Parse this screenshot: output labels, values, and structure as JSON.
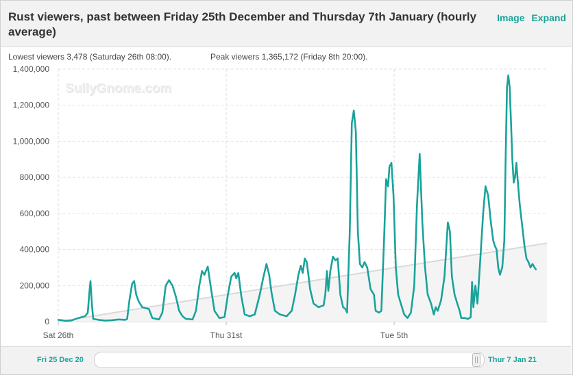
{
  "header": {
    "title": "Rust viewers, past between Friday 25th December and Thursday 7th January (hourly average)",
    "image_link": "Image",
    "expand_link": "Expand"
  },
  "info": {
    "lowest": "Lowest viewers 3,478 (Saturday 26th 08:00).",
    "peak": "Peak viewers 1,365,172 (Friday 8th 20:00)."
  },
  "watermark": "SullyGnome.com",
  "navigator": {
    "start_label": "Fri 25 Dec 20",
    "end_label": "Thur 7 Jan 21"
  },
  "colors": {
    "line": "#19a39a",
    "trend": "#d9d9d9",
    "accent": "#1aa39a"
  },
  "chart_data": {
    "type": "line",
    "title": "Rust viewers, past between Friday 25th December and Thursday 7th January (hourly average)",
    "x_unit": "days since Fri 25 Dec 00:00",
    "x_ticks": [
      {
        "x": 1,
        "label": "Sat 26th"
      },
      {
        "x": 6,
        "label": "Thu 31st"
      },
      {
        "x": 11,
        "label": "Tue 5th"
      }
    ],
    "y_ticks": [
      0,
      200000,
      400000,
      600000,
      800000,
      1000000,
      1200000,
      1400000
    ],
    "y_tick_labels": [
      "0",
      "200,000",
      "400,000",
      "600,000",
      "800,000",
      "1,000,000",
      "1,200,000",
      "1,400,000"
    ],
    "ylim": [
      0,
      1400000
    ],
    "xlim": [
      1,
      15.55
    ],
    "grid": true,
    "series": [
      {
        "name": "Viewers",
        "points": [
          [
            1.0,
            10000
          ],
          [
            1.1,
            8000
          ],
          [
            1.2,
            5000
          ],
          [
            1.3,
            5000
          ],
          [
            1.4,
            7000
          ],
          [
            1.6,
            20000
          ],
          [
            1.8,
            30000
          ],
          [
            1.88,
            50000
          ],
          [
            1.92,
            150000
          ],
          [
            1.96,
            225000
          ],
          [
            2.0,
            100000
          ],
          [
            2.04,
            15000
          ],
          [
            2.2,
            10000
          ],
          [
            2.4,
            6000
          ],
          [
            2.6,
            8000
          ],
          [
            2.8,
            12000
          ],
          [
            3.0,
            10000
          ],
          [
            3.05,
            15000
          ],
          [
            3.12,
            120000
          ],
          [
            3.2,
            210000
          ],
          [
            3.26,
            225000
          ],
          [
            3.32,
            150000
          ],
          [
            3.4,
            110000
          ],
          [
            3.5,
            80000
          ],
          [
            3.7,
            70000
          ],
          [
            3.8,
            20000
          ],
          [
            4.0,
            12000
          ],
          [
            4.1,
            50000
          ],
          [
            4.2,
            200000
          ],
          [
            4.3,
            230000
          ],
          [
            4.4,
            200000
          ],
          [
            4.5,
            140000
          ],
          [
            4.6,
            60000
          ],
          [
            4.7,
            30000
          ],
          [
            4.8,
            15000
          ],
          [
            5.0,
            12000
          ],
          [
            5.1,
            60000
          ],
          [
            5.2,
            200000
          ],
          [
            5.28,
            280000
          ],
          [
            5.35,
            260000
          ],
          [
            5.45,
            305000
          ],
          [
            5.55,
            180000
          ],
          [
            5.65,
            60000
          ],
          [
            5.8,
            20000
          ],
          [
            5.95,
            25000
          ],
          [
            6.05,
            150000
          ],
          [
            6.15,
            250000
          ],
          [
            6.25,
            270000
          ],
          [
            6.3,
            240000
          ],
          [
            6.36,
            270000
          ],
          [
            6.45,
            140000
          ],
          [
            6.55,
            40000
          ],
          [
            6.7,
            30000
          ],
          [
            6.85,
            40000
          ],
          [
            7.0,
            150000
          ],
          [
            7.1,
            240000
          ],
          [
            7.2,
            320000
          ],
          [
            7.28,
            260000
          ],
          [
            7.35,
            160000
          ],
          [
            7.45,
            60000
          ],
          [
            7.6,
            40000
          ],
          [
            7.8,
            30000
          ],
          [
            7.95,
            60000
          ],
          [
            8.05,
            150000
          ],
          [
            8.15,
            260000
          ],
          [
            8.22,
            310000
          ],
          [
            8.28,
            270000
          ],
          [
            8.34,
            350000
          ],
          [
            8.4,
            330000
          ],
          [
            8.5,
            180000
          ],
          [
            8.6,
            100000
          ],
          [
            8.75,
            80000
          ],
          [
            8.9,
            90000
          ],
          [
            8.95,
            150000
          ],
          [
            9.0,
            280000
          ],
          [
            9.04,
            170000
          ],
          [
            9.1,
            280000
          ],
          [
            9.18,
            360000
          ],
          [
            9.25,
            340000
          ],
          [
            9.32,
            350000
          ],
          [
            9.4,
            150000
          ],
          [
            9.48,
            80000
          ],
          [
            9.55,
            70000
          ],
          [
            9.6,
            50000
          ],
          [
            9.68,
            500000
          ],
          [
            9.74,
            1100000
          ],
          [
            9.8,
            1170000
          ],
          [
            9.86,
            1050000
          ],
          [
            9.92,
            500000
          ],
          [
            9.98,
            320000
          ],
          [
            10.05,
            300000
          ],
          [
            10.12,
            330000
          ],
          [
            10.2,
            300000
          ],
          [
            10.3,
            180000
          ],
          [
            10.4,
            150000
          ],
          [
            10.45,
            60000
          ],
          [
            10.55,
            50000
          ],
          [
            10.62,
            60000
          ],
          [
            10.7,
            450000
          ],
          [
            10.76,
            790000
          ],
          [
            10.82,
            750000
          ],
          [
            10.86,
            860000
          ],
          [
            10.92,
            880000
          ],
          [
            10.98,
            700000
          ],
          [
            11.05,
            300000
          ],
          [
            11.12,
            150000
          ],
          [
            11.2,
            100000
          ],
          [
            11.3,
            40000
          ],
          [
            11.4,
            20000
          ],
          [
            11.5,
            50000
          ],
          [
            11.6,
            200000
          ],
          [
            11.68,
            650000
          ],
          [
            11.76,
            930000
          ],
          [
            11.84,
            550000
          ],
          [
            11.92,
            300000
          ],
          [
            12.0,
            150000
          ],
          [
            12.1,
            100000
          ],
          [
            12.18,
            40000
          ],
          [
            12.24,
            80000
          ],
          [
            12.3,
            60000
          ],
          [
            12.4,
            120000
          ],
          [
            12.5,
            250000
          ],
          [
            12.6,
            550000
          ],
          [
            12.66,
            500000
          ],
          [
            12.72,
            250000
          ],
          [
            12.8,
            150000
          ],
          [
            12.88,
            100000
          ],
          [
            12.95,
            60000
          ],
          [
            13.0,
            20000
          ],
          [
            13.1,
            20000
          ],
          [
            13.2,
            15000
          ],
          [
            13.28,
            25000
          ],
          [
            13.32,
            220000
          ],
          [
            13.36,
            80000
          ],
          [
            13.42,
            200000
          ],
          [
            13.48,
            100000
          ],
          [
            13.55,
            300000
          ],
          [
            13.65,
            600000
          ],
          [
            13.72,
            750000
          ],
          [
            13.8,
            700000
          ],
          [
            13.88,
            550000
          ],
          [
            13.95,
            450000
          ],
          [
            14.0,
            420000
          ],
          [
            14.05,
            400000
          ],
          [
            14.1,
            300000
          ],
          [
            14.15,
            260000
          ],
          [
            14.22,
            300000
          ],
          [
            14.28,
            450000
          ],
          [
            14.32,
            900000
          ],
          [
            14.36,
            1300000
          ],
          [
            14.4,
            1365172
          ],
          [
            14.44,
            1300000
          ],
          [
            14.48,
            1100000
          ],
          [
            14.52,
            900000
          ],
          [
            14.56,
            770000
          ],
          [
            14.6,
            800000
          ],
          [
            14.64,
            880000
          ],
          [
            14.68,
            780000
          ],
          [
            14.74,
            650000
          ],
          [
            14.82,
            520000
          ],
          [
            14.88,
            420000
          ],
          [
            14.94,
            350000
          ],
          [
            15.0,
            330000
          ],
          [
            15.06,
            300000
          ],
          [
            15.12,
            320000
          ],
          [
            15.18,
            300000
          ],
          [
            15.22,
            290000
          ]
        ]
      }
    ],
    "trend": {
      "from": [
        1,
        0
      ],
      "to": [
        15.55,
        435000
      ]
    }
  }
}
